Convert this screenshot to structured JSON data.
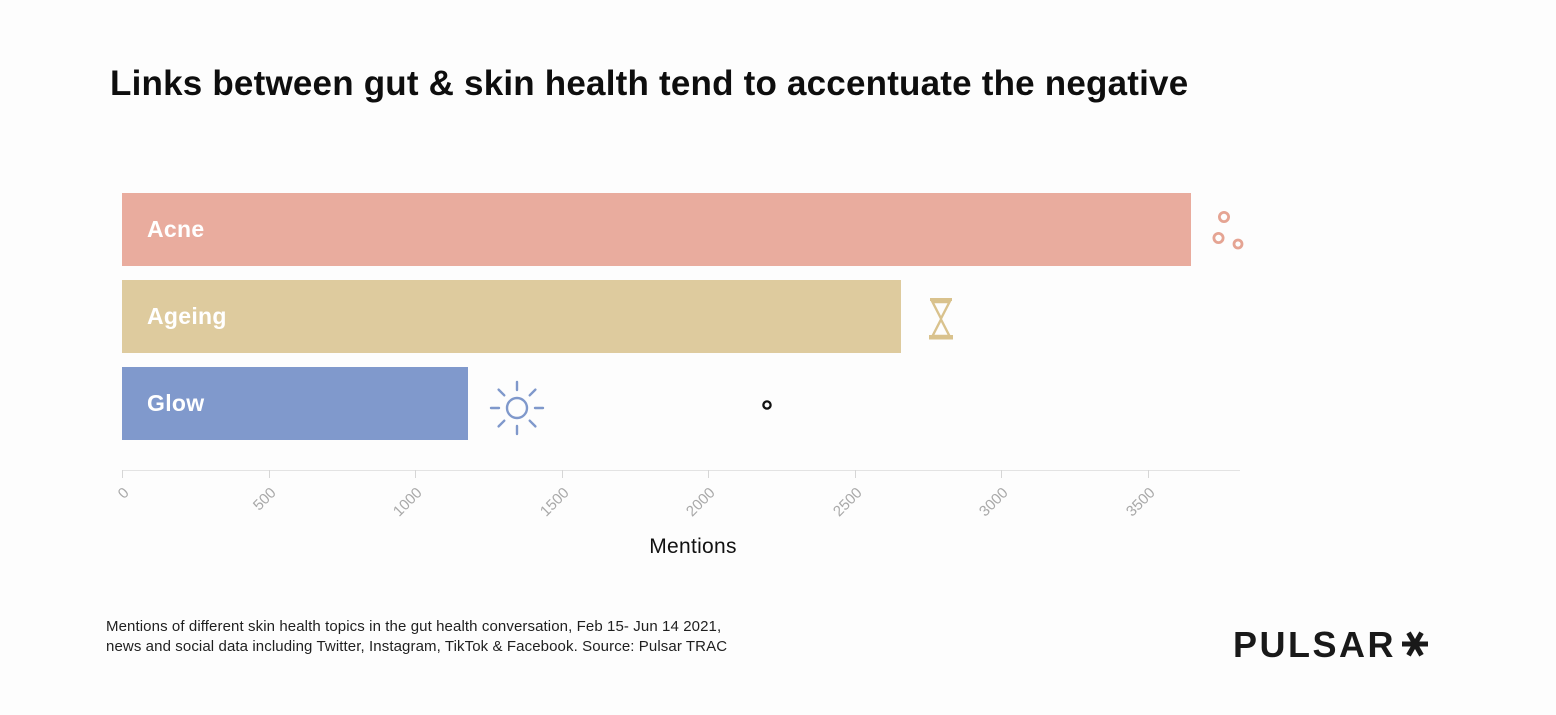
{
  "page": {
    "title": "Links between gut & skin health tend to accentuate the negative"
  },
  "chart_data": {
    "type": "bar",
    "orientation": "horizontal",
    "title": "Links between gut & skin health tend to accentuate the negative",
    "categories": [
      "Acne",
      "Ageing",
      "Glow"
    ],
    "values": [
      3650,
      2660,
      1180
    ],
    "bar_colors": [
      "#e9ac9e",
      "#decb9e",
      "#8099cc"
    ],
    "icons": [
      "acne-spots-icon",
      "hourglass-icon",
      "sun-icon"
    ],
    "xlabel": "Mentions",
    "xticks": [
      0,
      500,
      1000,
      1500,
      2000,
      2500,
      3000,
      3500
    ],
    "xlim": [
      0,
      3820
    ],
    "grid": false,
    "legend": false,
    "annotations": [
      {
        "type": "dot-marker",
        "row": "Glow",
        "x": 2200
      }
    ]
  },
  "caption": {
    "text": "Mentions of different skin health topics in the gut health conversation, Feb 15- Jun 14 2021,\nnews and social data including Twitter, Instagram, TikTok & Facebook. Source: Pulsar TRAC"
  },
  "logo": {
    "text": "PULSAR"
  }
}
